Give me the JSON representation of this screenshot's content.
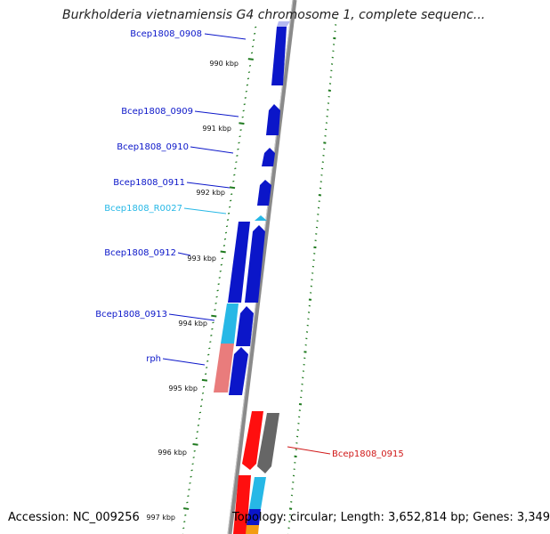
{
  "title": "Burkholderia vietnamiensis G4 chromosome 1, complete sequenc...",
  "accession": "Accession: NC_009256",
  "topology": "Topology: circular; Length: 3,652,814 bp; Genes: 3,349",
  "ruler": [
    "990 kbp",
    "991 kbp",
    "992 kbp",
    "993 kbp",
    "994 kbp",
    "995 kbp",
    "996 kbp",
    "997 kbp"
  ],
  "genes": [
    {
      "name": "Bcep1808_0908",
      "color": "#0b16c9"
    },
    {
      "name": "Bcep1808_0909",
      "color": "#0b16c9"
    },
    {
      "name": "Bcep1808_0910",
      "color": "#0b16c9"
    },
    {
      "name": "Bcep1808_0911",
      "color": "#0b16c9"
    },
    {
      "name": "Bcep1808_R0027",
      "color": "#27b8e6"
    },
    {
      "name": "Bcep1808_0912",
      "color": "#0b16c9"
    },
    {
      "name": "Bcep1808_0913",
      "color": "#0b16c9"
    },
    {
      "name": "rph",
      "color": "#0b16c9"
    },
    {
      "name": "Bcep1808_0915",
      "color": "#d01818"
    }
  ],
  "colors": {
    "forward_cds": "#0b16c9",
    "reverse_cds": "#ff0f0f",
    "rna": "#27b8e6",
    "pink": "#e97c7c",
    "grey": "#666666",
    "tick": "#1f7a1f"
  }
}
